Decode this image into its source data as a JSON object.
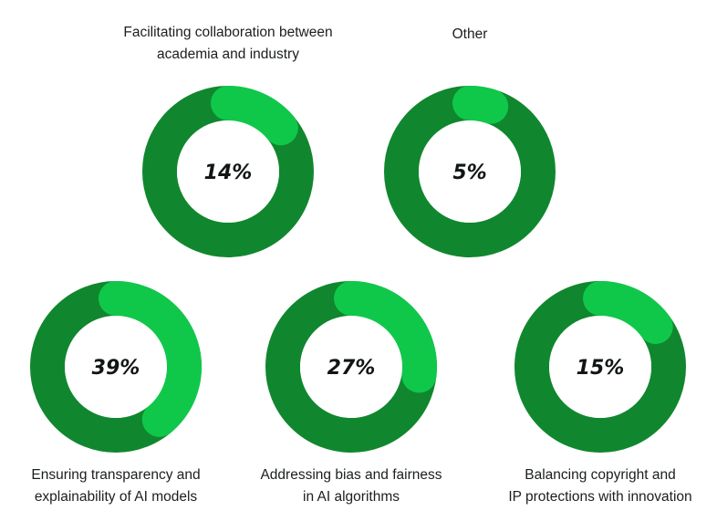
{
  "chart_data": {
    "type": "donut",
    "value_unit": "%",
    "colors": {
      "track": "#10872e",
      "value": "#0fc84a",
      "hole": "#ffffff",
      "text": "#111614"
    },
    "items": [
      {
        "label_lines": [
          "Facilitating collaboration between",
          "academia and industry"
        ],
        "value": 14,
        "value_label": "14%"
      },
      {
        "label_lines": [
          "Other"
        ],
        "value": 5,
        "value_label": "5%"
      },
      {
        "label_lines": [
          "Ensuring transparency and",
          "explainability of AI models"
        ],
        "value": 39,
        "value_label": "39%"
      },
      {
        "label_lines": [
          "Addressing bias and fairness",
          "in AI algorithms"
        ],
        "value": 27,
        "value_label": "27%"
      },
      {
        "label_lines": [
          "Balancing copyright and",
          "IP protections with innovation"
        ],
        "value": 15,
        "value_label": "15%"
      }
    ]
  }
}
